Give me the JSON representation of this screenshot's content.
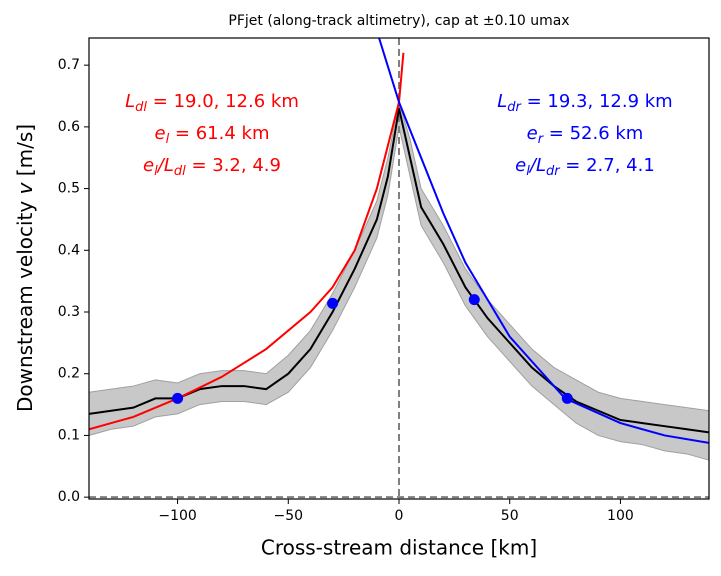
{
  "chart_data": {
    "type": "line",
    "title": "PFjet (along-track altimetry), cap at ±0.10 umax",
    "xlabel": "Cross-stream distance [km]",
    "ylabel": {
      "before": "Downstream velocity ",
      "italic": "v",
      "after": " [m/s]"
    },
    "xlim": [
      -140,
      140
    ],
    "ylim": [
      -0.003,
      0.744
    ],
    "xticks": [
      {
        "value": -100,
        "label": "−100"
      },
      {
        "value": -50,
        "label": "−50"
      },
      0,
      50,
      100
    ],
    "yticks": [
      {
        "value": 0,
        "label": "0.0"
      },
      0.1,
      0.2,
      0.3,
      0.4,
      0.5,
      0.6,
      0.7
    ],
    "vlines": [
      0
    ],
    "hlines": [
      0
    ],
    "band": {
      "color": "#c8c8c8",
      "edge": "#a0a0a0",
      "x": [
        -140,
        -130,
        -120,
        -110,
        -100,
        -90,
        -80,
        -70,
        -60,
        -50,
        -40,
        -30,
        -20,
        -10,
        -5,
        0,
        5,
        10,
        20,
        30,
        40,
        50,
        60,
        70,
        80,
        90,
        100,
        110,
        120,
        130,
        140
      ],
      "lower": [
        0.1,
        0.11,
        0.115,
        0.13,
        0.135,
        0.15,
        0.155,
        0.155,
        0.15,
        0.17,
        0.21,
        0.27,
        0.34,
        0.42,
        0.49,
        0.6,
        0.52,
        0.44,
        0.38,
        0.31,
        0.26,
        0.22,
        0.18,
        0.15,
        0.12,
        0.1,
        0.09,
        0.085,
        0.075,
        0.07,
        0.06
      ],
      "upper": [
        0.17,
        0.175,
        0.18,
        0.19,
        0.185,
        0.2,
        0.205,
        0.205,
        0.2,
        0.23,
        0.27,
        0.33,
        0.4,
        0.48,
        0.55,
        0.64,
        0.58,
        0.5,
        0.44,
        0.37,
        0.32,
        0.28,
        0.24,
        0.21,
        0.19,
        0.17,
        0.16,
        0.155,
        0.15,
        0.145,
        0.14
      ]
    },
    "series": [
      {
        "color": "#000000",
        "x": [
          -140,
          -130,
          -120,
          -110,
          -100,
          -90,
          -80,
          -70,
          -60,
          -50,
          -40,
          -30,
          -20,
          -10,
          -5,
          0,
          5,
          10,
          20,
          30,
          40,
          50,
          60,
          70,
          80,
          90,
          100,
          110,
          120,
          130,
          140
        ],
        "values": [
          0.135,
          0.14,
          0.145,
          0.16,
          0.16,
          0.175,
          0.18,
          0.18,
          0.175,
          0.2,
          0.24,
          0.3,
          0.37,
          0.45,
          0.52,
          0.63,
          0.55,
          0.47,
          0.41,
          0.34,
          0.29,
          0.25,
          0.21,
          0.18,
          0.155,
          0.14,
          0.125,
          0.12,
          0.115,
          0.11,
          0.105
        ]
      },
      {
        "color": "#ff0000",
        "x": [
          -140,
          -120,
          -100,
          -80,
          -60,
          -40,
          -30,
          -20,
          -10,
          0,
          2
        ],
        "values": [
          0.11,
          0.13,
          0.16,
          0.195,
          0.24,
          0.3,
          0.34,
          0.4,
          0.5,
          0.64,
          0.72
        ]
      },
      {
        "color": "#0000ff",
        "x": [
          -9,
          0,
          10,
          20,
          30,
          40,
          50,
          60,
          75,
          100,
          120,
          140
        ],
        "values": [
          0.744,
          0.64,
          0.55,
          0.46,
          0.38,
          0.32,
          0.26,
          0.22,
          0.16,
          0.12,
          0.1,
          0.088
        ]
      }
    ],
    "points": {
      "color": "#0000ff",
      "x": [
        -100,
        -30,
        34,
        76
      ],
      "values": [
        0.16,
        0.314,
        0.32,
        0.16
      ]
    },
    "annotations": [
      {
        "color": "#ff0000",
        "lines": [
          {
            "base": "L",
            "sub": "dl",
            "rest": " = 19.0, 12.6 km"
          },
          {
            "base": "e",
            "sub": "l",
            "rest": " = 61.4 km"
          },
          {
            "base": "e",
            "sub": "l",
            "mid": "/L",
            "sub2": "dl",
            "rest": " = 3.2, 4.9"
          }
        ]
      },
      {
        "color": "#0000ff",
        "lines": [
          {
            "base": "L",
            "sub": "dr",
            "rest": " = 19.3, 12.9 km"
          },
          {
            "base": "e",
            "sub": "r",
            "rest": " = 52.6 km"
          },
          {
            "base": "e",
            "sub": "l",
            "mid": "/L",
            "sub2": "dr",
            "rest": " = 2.7, 4.1"
          }
        ]
      }
    ]
  }
}
